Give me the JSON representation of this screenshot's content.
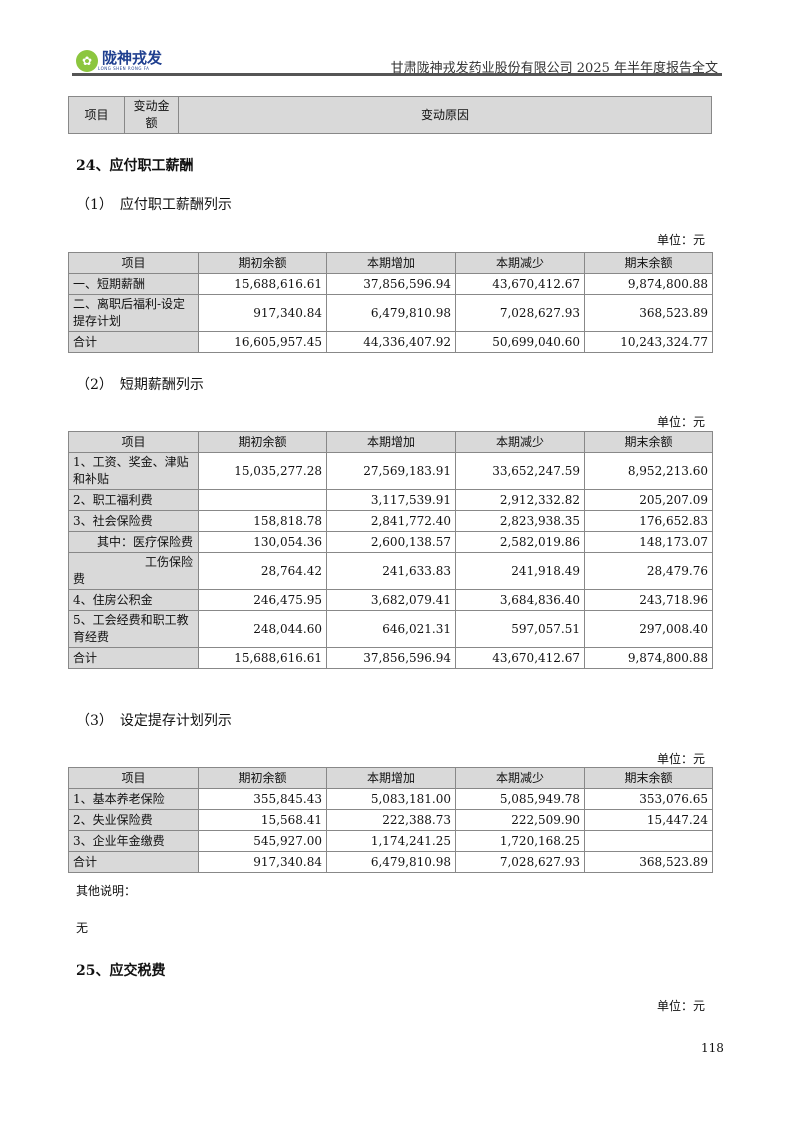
{
  "header": {
    "logo_text": "陇神戎发",
    "logo_sub": "LONG SHEN RONG FA",
    "title": "甘肃陇神戎发药业股份有限公司 2025 年半年度报告全文"
  },
  "top_table": {
    "headers": [
      "项目",
      "变动金额",
      "变动原因"
    ]
  },
  "section24": {
    "title": "24、应付职工薪酬"
  },
  "sub1": {
    "title": "（1）　应付职工薪酬列示",
    "unit": "单位：元",
    "headers": [
      "项目",
      "期初余额",
      "本期增加",
      "本期减少",
      "期末余额"
    ],
    "rows": [
      [
        "一、短期薪酬",
        "15,688,616.61",
        "37,856,596.94",
        "43,670,412.67",
        "9,874,800.88"
      ],
      [
        "二、离职后福利-设定提存计划",
        "917,340.84",
        "6,479,810.98",
        "7,028,627.93",
        "368,523.89"
      ],
      [
        "合计",
        "16,605,957.45",
        "44,336,407.92",
        "50,699,040.60",
        "10,243,324.77"
      ]
    ]
  },
  "sub2": {
    "title": "（2）　短期薪酬列示",
    "unit": "单位：元",
    "headers": [
      "项目",
      "期初余额",
      "本期增加",
      "本期减少",
      "期末余额"
    ],
    "rows": [
      [
        "1、工资、奖金、津贴和补贴",
        "15,035,277.28",
        "27,569,183.91",
        "33,652,247.59",
        "8,952,213.60"
      ],
      [
        "2、职工福利费",
        "",
        "3,117,539.91",
        "2,912,332.82",
        "205,207.09"
      ],
      [
        "3、社会保险费",
        "158,818.78",
        "2,841,772.40",
        "2,823,938.35",
        "176,652.83"
      ],
      [
        "　　其中：医疗保险费",
        "130,054.36",
        "2,600,138.57",
        "2,582,019.86",
        "148,173.07"
      ],
      [
        "　　　　　　工伤保险费",
        "28,764.42",
        "241,633.83",
        "241,918.49",
        "28,479.76"
      ],
      [
        "4、住房公积金",
        "246,475.95",
        "3,682,079.41",
        "3,684,836.40",
        "243,718.96"
      ],
      [
        "5、工会经费和职工教育经费",
        "248,044.60",
        "646,021.31",
        "597,057.51",
        "297,008.40"
      ],
      [
        "合计",
        "15,688,616.61",
        "37,856,596.94",
        "43,670,412.67",
        "9,874,800.88"
      ]
    ]
  },
  "sub3": {
    "title": "（3）　设定提存计划列示",
    "unit": "单位：元",
    "headers": [
      "项目",
      "期初余额",
      "本期增加",
      "本期减少",
      "期末余额"
    ],
    "rows": [
      [
        "1、基本养老保险",
        "355,845.43",
        "5,083,181.00",
        "5,085,949.78",
        "353,076.65"
      ],
      [
        "2、失业保险费",
        "15,568.41",
        "222,388.73",
        "222,509.90",
        "15,447.24"
      ],
      [
        "3、企业年金缴费",
        "545,927.00",
        "1,174,241.25",
        "1,720,168.25",
        ""
      ],
      [
        "合计",
        "917,340.84",
        "6,479,810.98",
        "7,028,627.93",
        "368,523.89"
      ]
    ]
  },
  "other_notes": {
    "label": "其他说明：",
    "value": "无"
  },
  "section25": {
    "title": "25、应交税费",
    "unit": "单位：元"
  },
  "page_number": "118"
}
